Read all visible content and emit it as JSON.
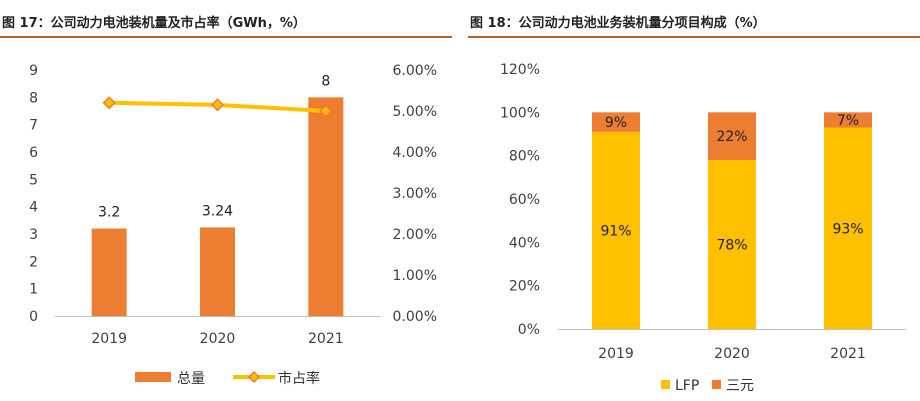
{
  "colors": {
    "title_rule": "#b8621d",
    "bar": "#ed7d31",
    "line": "#ffc000",
    "marker_stroke": "#ed7d31",
    "lfp": "#ffc000",
    "sanyuan": "#ed7d31",
    "axis": "#bfbfbf"
  },
  "chart_data": [
    {
      "type": "bar",
      "title": "图 17：公司动力电池装机量及市占率（GWh，%）",
      "categories": [
        "2019",
        "2020",
        "2021"
      ],
      "series": [
        {
          "name": "总量",
          "type": "bar",
          "axis": "left",
          "values": [
            3.2,
            3.24,
            8
          ],
          "labels": [
            "3.2",
            "3.24",
            "8"
          ]
        },
        {
          "name": "市占率",
          "type": "line",
          "axis": "right",
          "values": [
            5.2,
            5.15,
            5.0
          ]
        }
      ],
      "ylim_left": [
        0,
        9
      ],
      "yticks_left": [
        "0",
        "1",
        "2",
        "3",
        "4",
        "5",
        "6",
        "7",
        "8",
        "9"
      ],
      "ylim_right": [
        0,
        6
      ],
      "yticks_right": [
        "0.00%",
        "1.00%",
        "2.00%",
        "3.00%",
        "4.00%",
        "5.00%",
        "6.00%"
      ],
      "legend": "bottom"
    },
    {
      "type": "bar",
      "stacked": true,
      "title": "图 18：公司动力电池业务装机量分项目构成（%）",
      "categories": [
        "2019",
        "2020",
        "2021"
      ],
      "series": [
        {
          "name": "LFP",
          "values": [
            91,
            78,
            93
          ],
          "labels": [
            "91%",
            "78%",
            "93%"
          ]
        },
        {
          "name": "三元",
          "values": [
            9,
            22,
            7
          ],
          "labels": [
            "9%",
            "22%",
            "7%"
          ]
        }
      ],
      "ylim": [
        0,
        120
      ],
      "yticks": [
        "0%",
        "20%",
        "40%",
        "60%",
        "80%",
        "100%",
        "120%"
      ],
      "legend": "bottom"
    }
  ]
}
